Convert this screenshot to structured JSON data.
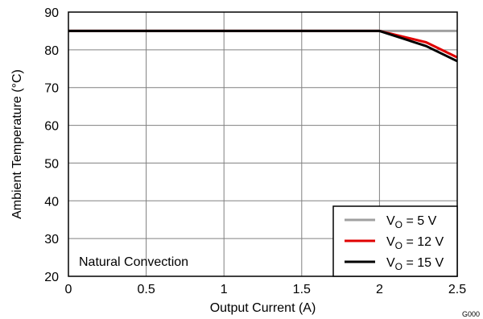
{
  "chart_data": {
    "type": "line",
    "title": "",
    "xlabel": "Output Current (A)",
    "ylabel": "Ambient Temperature (°C)",
    "xlim": [
      0,
      2.5
    ],
    "ylim": [
      20,
      90
    ],
    "xticks": [
      0,
      0.5,
      1,
      1.5,
      2,
      2.5
    ],
    "xtick_labels": [
      "0",
      "0.5",
      "1",
      "1.5",
      "2",
      "2.5"
    ],
    "yticks": [
      20,
      30,
      40,
      50,
      60,
      70,
      80,
      90
    ],
    "ytick_labels": [
      "20",
      "30",
      "40",
      "50",
      "60",
      "70",
      "80",
      "90"
    ],
    "grid": true,
    "legend_position": "bottom-right",
    "annotation": "Natural Convection",
    "figure_id": "G000",
    "series": [
      {
        "name": "V_O = 5 V",
        "label_main": "V",
        "label_sub": "O",
        "label_tail": " = 5 V",
        "color": "#a0a0a0",
        "x": [
          0,
          2,
          2.5
        ],
        "y": [
          85,
          85,
          85
        ]
      },
      {
        "name": "V_O = 12 V",
        "label_main": "V",
        "label_sub": "O",
        "label_tail": " = 12 V",
        "color": "#e00000",
        "x": [
          0,
          2,
          2.3,
          2.5
        ],
        "y": [
          85,
          85,
          82,
          78
        ]
      },
      {
        "name": "V_O = 15 V",
        "label_main": "V",
        "label_sub": "O",
        "label_tail": " = 15 V",
        "color": "#000000",
        "x": [
          0,
          2,
          2.3,
          2.5
        ],
        "y": [
          85,
          85,
          81,
          77
        ]
      }
    ]
  }
}
